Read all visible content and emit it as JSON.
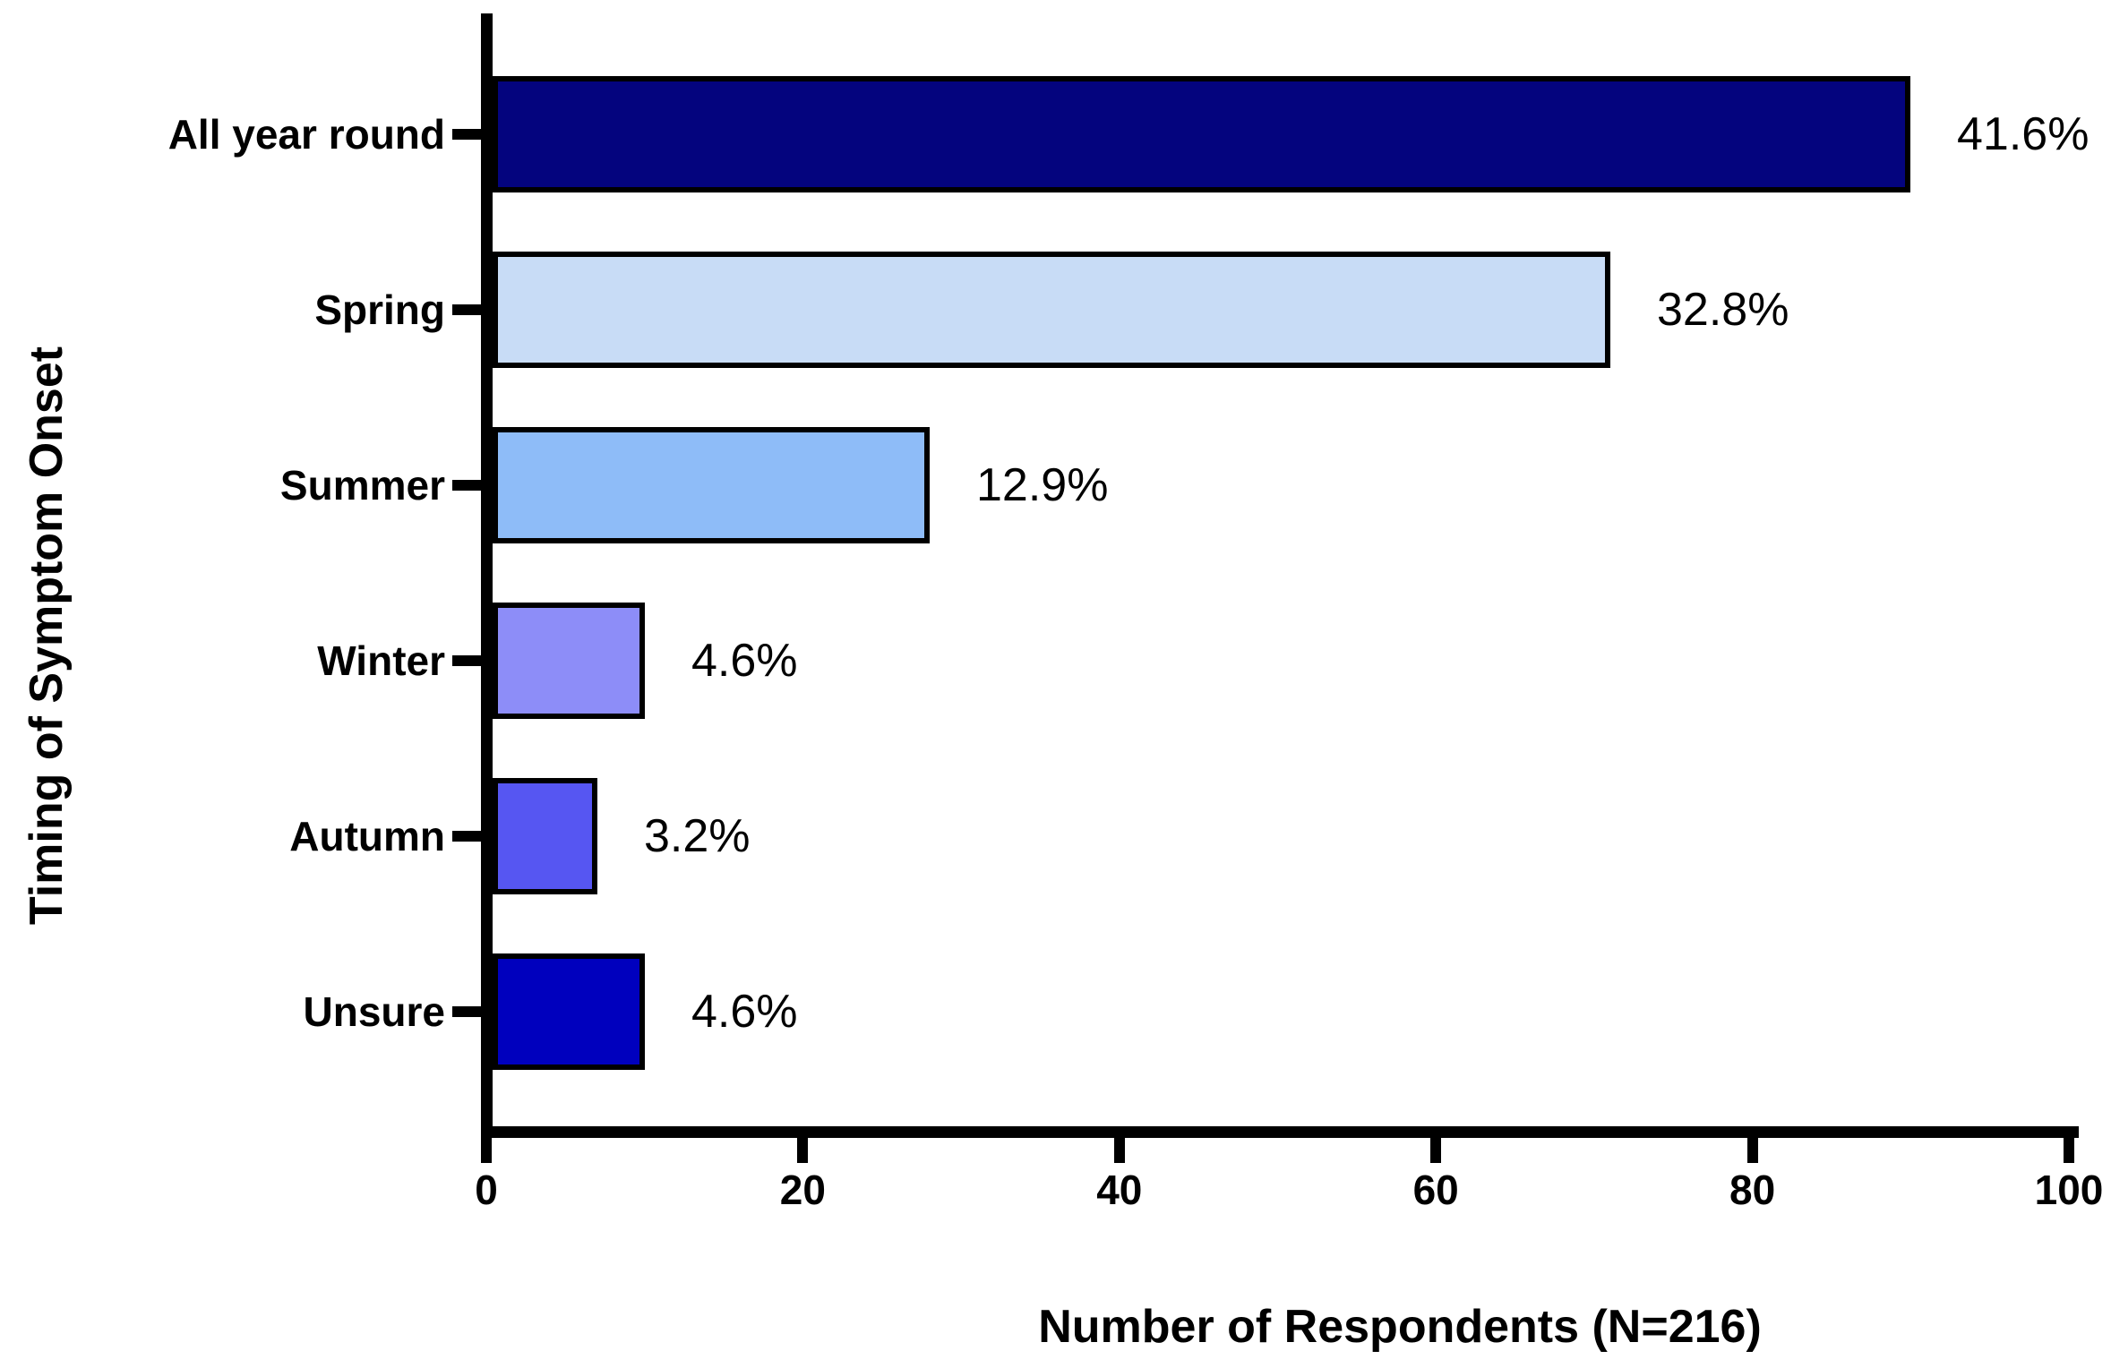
{
  "chart_data": {
    "type": "bar",
    "orientation": "horizontal",
    "title": "",
    "xlabel": "Number of Respondents (N=216)",
    "ylabel": "Timing of Symptom Onset",
    "n_total": 216,
    "xlim": [
      0,
      100
    ],
    "x_ticks": [
      "0",
      "20",
      "40",
      "60",
      "80",
      "100"
    ],
    "x_tick_values": [
      0,
      20,
      40,
      60,
      80,
      100
    ],
    "grid": "off",
    "legend": "none",
    "categories": [
      "All year round",
      "Spring",
      "Summer",
      "Winter",
      "Autumn",
      "Unsure"
    ],
    "values": [
      90,
      71,
      28,
      10,
      7,
      10
    ],
    "percent_labels": [
      "41.6%",
      "32.8%",
      "12.9%",
      "4.6%",
      "3.2%",
      "4.6%"
    ],
    "bar_colors": [
      "#04047E",
      "#C8DCF6",
      "#8EBCF8",
      "#8D8DF8",
      "#5656F2",
      "#0000BE"
    ],
    "bar_border_color": "#000000",
    "axis_color": "#000000"
  }
}
